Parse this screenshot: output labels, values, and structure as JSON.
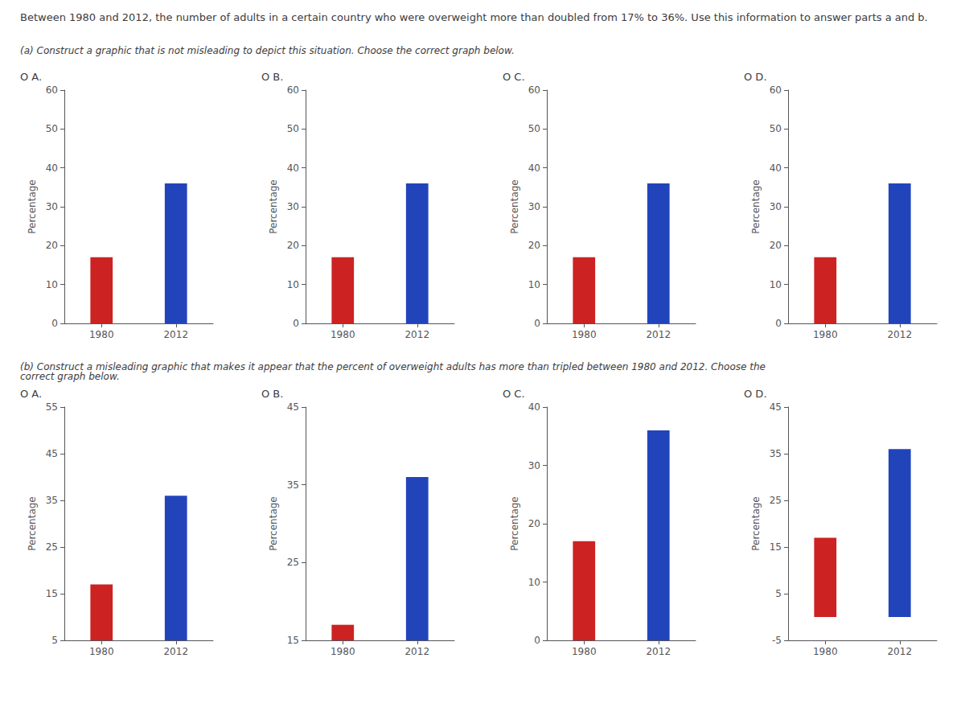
{
  "title": "Between 1980 and 2012, the number of adults in a certain country who were overweight more than doubled from 17% to 36%. Use this information to answer parts a and b.",
  "annotations": [
    "(a) Construct a graphic that is not misleading to depict this situation. Choose the correct graph below.",
    "(b) Construct a misleading graphic that makes it appear that the percent of overweight adults has more than tripled between 1980 and 2012. Choose the correct graph below."
  ],
  "chart_data": [
    {
      "type": "bar",
      "title": "O A.",
      "categories": [
        "1980",
        "2012"
      ],
      "values": [
        17,
        36
      ],
      "colors": [
        "#CC2222",
        "#2244BB"
      ],
      "ylabel": "Percentage",
      "ylim": [
        0,
        60
      ],
      "yticks": [
        0,
        10,
        20,
        30,
        40,
        50,
        60
      ],
      "grid": false
    },
    {
      "type": "bar",
      "title": "O B.",
      "categories": [
        "1980",
        "2012"
      ],
      "values": [
        17,
        36
      ],
      "colors": [
        "#CC2222",
        "#2244BB"
      ],
      "ylabel": "Percentage",
      "ylim": [
        0,
        60
      ],
      "yticks": [
        0,
        10,
        20,
        30,
        40,
        50,
        60
      ],
      "grid": false
    },
    {
      "type": "bar",
      "title": "O C.",
      "categories": [
        "1980",
        "2012"
      ],
      "values": [
        17,
        36
      ],
      "colors": [
        "#CC2222",
        "#2244BB"
      ],
      "ylabel": "Percentage",
      "ylim": [
        0,
        60
      ],
      "yticks": [
        0,
        10,
        20,
        30,
        40,
        50,
        60
      ],
      "grid": false
    },
    {
      "type": "bar",
      "title": "O D.",
      "categories": [
        "1980",
        "2012"
      ],
      "values": [
        17,
        36
      ],
      "colors": [
        "#CC2222",
        "#2244BB"
      ],
      "ylabel": "Percentage",
      "ylim": [
        0,
        60
      ],
      "yticks": [
        0,
        10,
        20,
        30,
        40,
        50,
        60
      ],
      "grid": false
    },
    {
      "type": "bar",
      "title": "O A.",
      "categories": [
        "1980",
        "2012"
      ],
      "values": [
        17,
        36
      ],
      "colors": [
        "#CC2222",
        "#2244BB"
      ],
      "ylabel": "Percentage",
      "ylim": [
        5,
        55
      ],
      "yticks": [
        5,
        15,
        25,
        35,
        45,
        55
      ],
      "grid": false
    },
    {
      "type": "bar",
      "title": "O B.",
      "categories": [
        "1980",
        "2012"
      ],
      "values": [
        17,
        36
      ],
      "colors": [
        "#CC2222",
        "#2244BB"
      ],
      "ylabel": "Percentage",
      "ylim": [
        15,
        45
      ],
      "yticks": [
        15,
        25,
        35,
        45
      ],
      "grid": false
    },
    {
      "type": "bar",
      "title": "O C.",
      "categories": [
        "1980",
        "2012"
      ],
      "values": [
        17,
        36
      ],
      "colors": [
        "#CC2222",
        "#2244BB"
      ],
      "ylabel": "Percentage",
      "ylim": [
        0,
        40
      ],
      "yticks": [
        0,
        10,
        20,
        30,
        40
      ],
      "grid": false
    },
    {
      "type": "bar",
      "title": "O D.",
      "categories": [
        "1980",
        "2012"
      ],
      "values": [
        17,
        36
      ],
      "colors": [
        "#CC2222",
        "#2244BB"
      ],
      "ylabel": "Percentage",
      "ylim": [
        -5,
        45
      ],
      "yticks": [
        -5,
        5,
        15,
        25,
        35,
        45
      ],
      "grid": false
    }
  ]
}
